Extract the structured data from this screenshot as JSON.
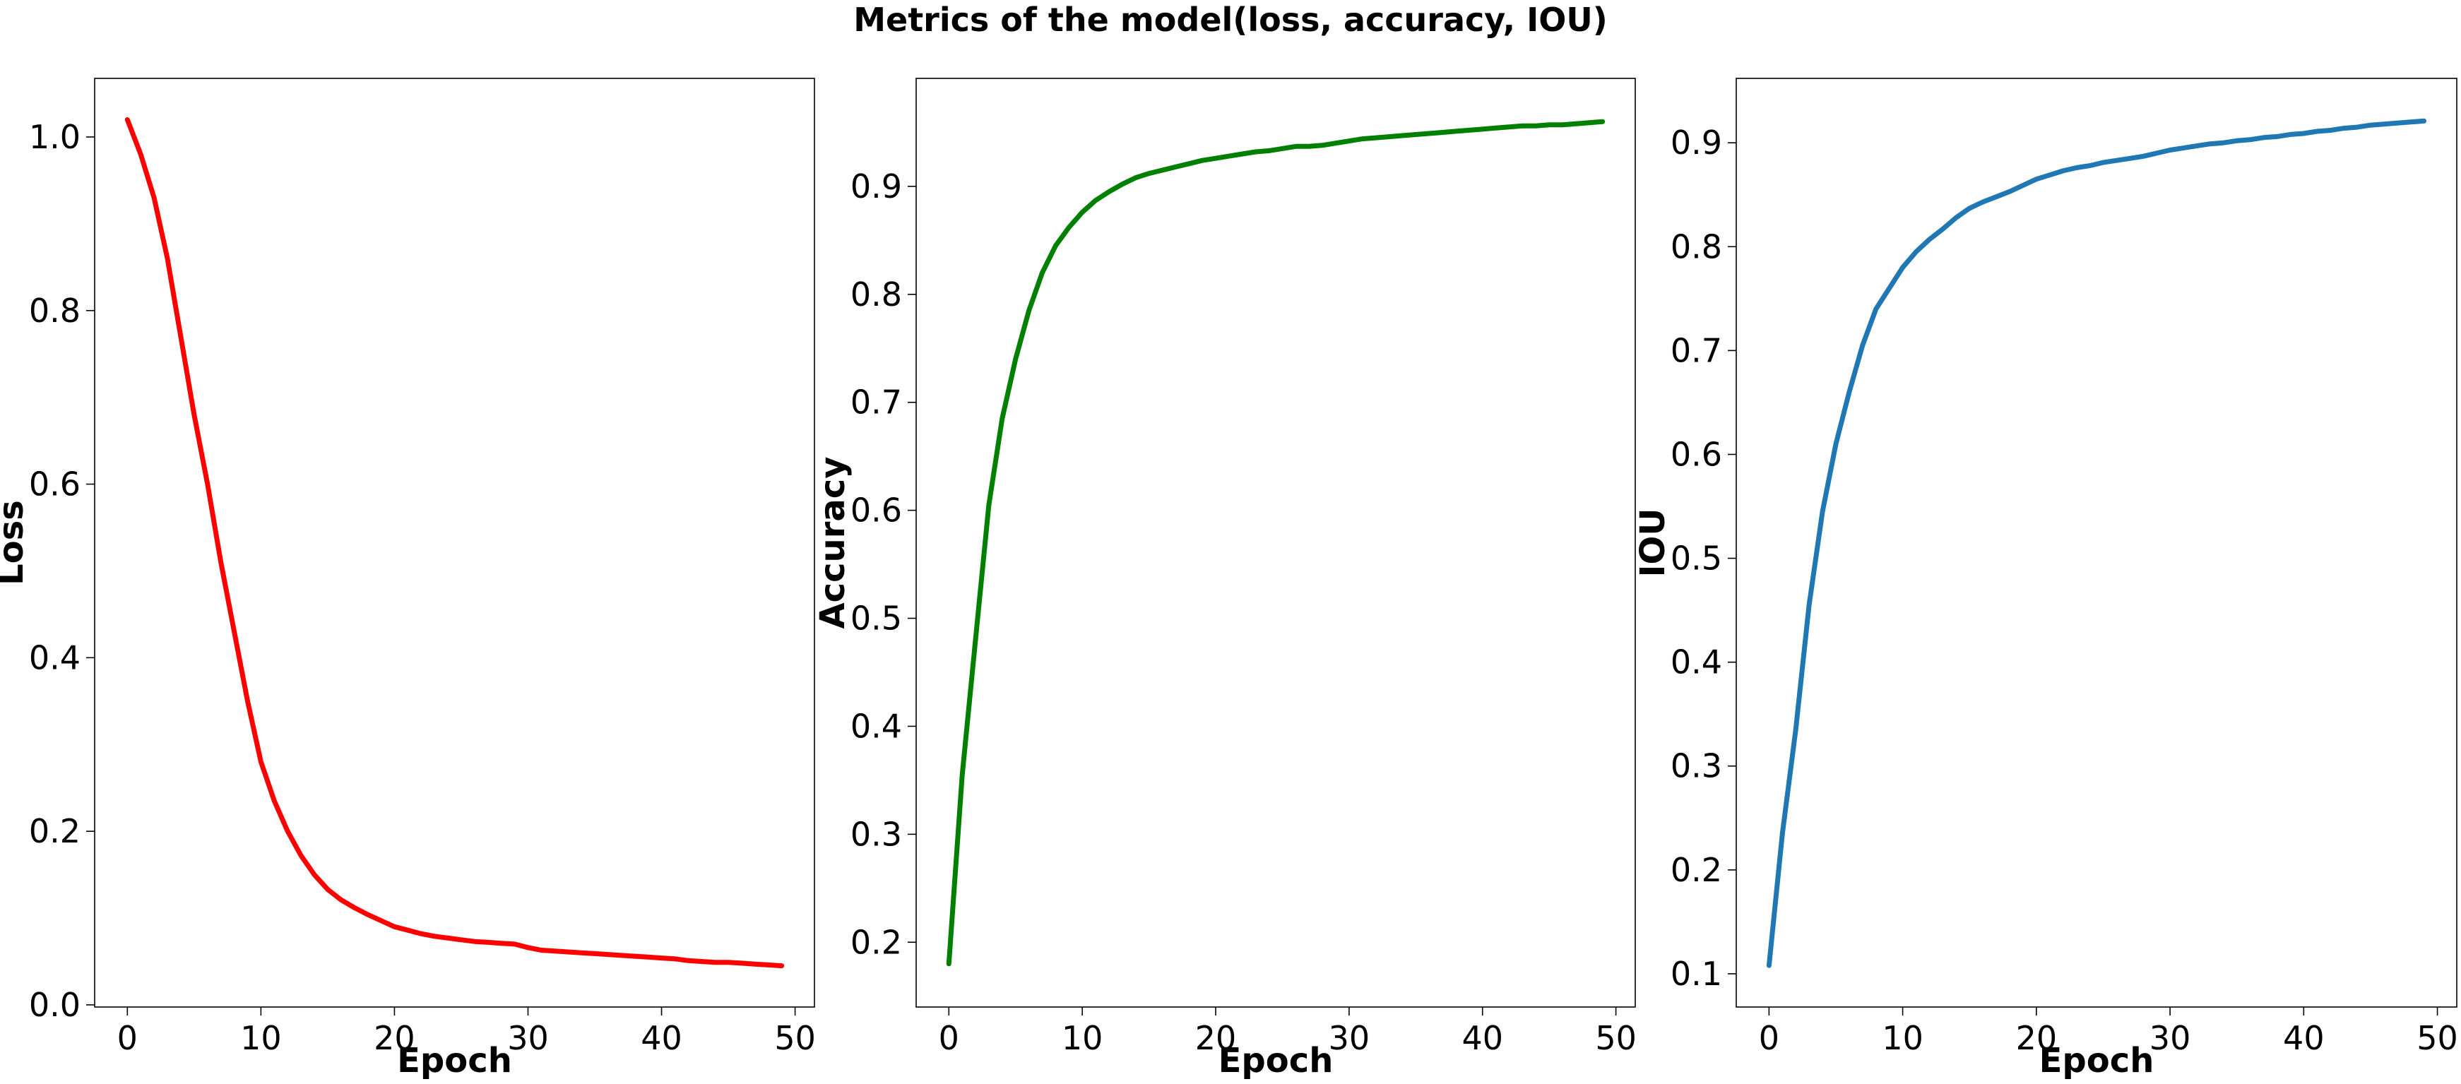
{
  "figure": {
    "title": "Metrics of the model(loss, accuracy, IOU)"
  },
  "chart_data": [
    {
      "type": "line",
      "xlabel": "Epoch",
      "ylabel": "Loss",
      "xlim": [
        -2.45,
        51.45
      ],
      "ylim": [
        -0.0025,
        1.0675
      ],
      "xticks": [
        0,
        10,
        20,
        30,
        40,
        50
      ],
      "yticks": [
        0.0,
        0.2,
        0.4,
        0.6,
        0.8,
        1.0
      ],
      "tick_format": 1,
      "grid": false,
      "color": "#ff0000",
      "x": [
        0,
        1,
        2,
        3,
        4,
        5,
        6,
        7,
        8,
        9,
        10,
        11,
        12,
        13,
        14,
        15,
        16,
        17,
        18,
        19,
        20,
        21,
        22,
        23,
        24,
        25,
        26,
        27,
        28,
        29,
        30,
        31,
        32,
        33,
        34,
        35,
        36,
        37,
        38,
        39,
        40,
        41,
        42,
        43,
        44,
        45,
        46,
        47,
        48,
        49
      ],
      "y": [
        1.02,
        0.98,
        0.93,
        0.86,
        0.77,
        0.68,
        0.6,
        0.51,
        0.43,
        0.35,
        0.28,
        0.235,
        0.2,
        0.172,
        0.15,
        0.133,
        0.121,
        0.112,
        0.104,
        0.097,
        0.09,
        0.086,
        0.082,
        0.079,
        0.077,
        0.075,
        0.073,
        0.072,
        0.071,
        0.07,
        0.066,
        0.063,
        0.062,
        0.061,
        0.06,
        0.059,
        0.058,
        0.057,
        0.056,
        0.055,
        0.054,
        0.053,
        0.051,
        0.05,
        0.049,
        0.049,
        0.048,
        0.047,
        0.046,
        0.045
      ]
    },
    {
      "type": "line",
      "xlabel": "Epoch",
      "ylabel": "Accuracy",
      "xlim": [
        -2.45,
        51.45
      ],
      "ylim": [
        0.14,
        1.0
      ],
      "xticks": [
        0,
        10,
        20,
        30,
        40,
        50
      ],
      "yticks": [
        0.2,
        0.3,
        0.4,
        0.5,
        0.6,
        0.7,
        0.8,
        0.9
      ],
      "tick_format": 1,
      "grid": false,
      "color": "#008000",
      "x": [
        0,
        1,
        2,
        3,
        4,
        5,
        6,
        7,
        8,
        9,
        10,
        11,
        12,
        13,
        14,
        15,
        16,
        17,
        18,
        19,
        20,
        21,
        22,
        23,
        24,
        25,
        26,
        27,
        28,
        29,
        30,
        31,
        32,
        33,
        34,
        35,
        36,
        37,
        38,
        39,
        40,
        41,
        42,
        43,
        44,
        45,
        46,
        47,
        48,
        49
      ],
      "y": [
        0.18,
        0.355,
        0.48,
        0.605,
        0.685,
        0.74,
        0.785,
        0.82,
        0.845,
        0.862,
        0.876,
        0.887,
        0.895,
        0.902,
        0.908,
        0.912,
        0.915,
        0.918,
        0.921,
        0.924,
        0.926,
        0.928,
        0.93,
        0.932,
        0.933,
        0.935,
        0.937,
        0.937,
        0.938,
        0.94,
        0.942,
        0.944,
        0.945,
        0.946,
        0.947,
        0.948,
        0.949,
        0.95,
        0.951,
        0.952,
        0.953,
        0.954,
        0.955,
        0.956,
        0.956,
        0.957,
        0.957,
        0.958,
        0.959,
        0.96
      ]
    },
    {
      "type": "line",
      "xlabel": "Epoch",
      "ylabel": "IOU",
      "xlim": [
        -2.45,
        51.45
      ],
      "ylim": [
        0.068,
        0.962
      ],
      "xticks": [
        0,
        10,
        20,
        30,
        40,
        50
      ],
      "yticks": [
        0.1,
        0.2,
        0.3,
        0.4,
        0.5,
        0.6,
        0.7,
        0.8,
        0.9
      ],
      "tick_format": 1,
      "grid": false,
      "color": "#1f77b4",
      "x": [
        0,
        1,
        2,
        3,
        4,
        5,
        6,
        7,
        8,
        9,
        10,
        11,
        12,
        13,
        14,
        15,
        16,
        17,
        18,
        19,
        20,
        21,
        22,
        23,
        24,
        25,
        26,
        27,
        28,
        29,
        30,
        31,
        32,
        33,
        34,
        35,
        36,
        37,
        38,
        39,
        40,
        41,
        42,
        43,
        44,
        45,
        46,
        47,
        48,
        49
      ],
      "y": [
        0.108,
        0.235,
        0.335,
        0.455,
        0.545,
        0.61,
        0.66,
        0.705,
        0.74,
        0.76,
        0.78,
        0.795,
        0.807,
        0.817,
        0.828,
        0.837,
        0.843,
        0.848,
        0.853,
        0.859,
        0.865,
        0.869,
        0.873,
        0.876,
        0.878,
        0.881,
        0.883,
        0.885,
        0.887,
        0.89,
        0.893,
        0.895,
        0.897,
        0.899,
        0.9,
        0.902,
        0.903,
        0.905,
        0.906,
        0.908,
        0.909,
        0.911,
        0.912,
        0.914,
        0.915,
        0.917,
        0.918,
        0.919,
        0.92,
        0.921
      ]
    }
  ]
}
